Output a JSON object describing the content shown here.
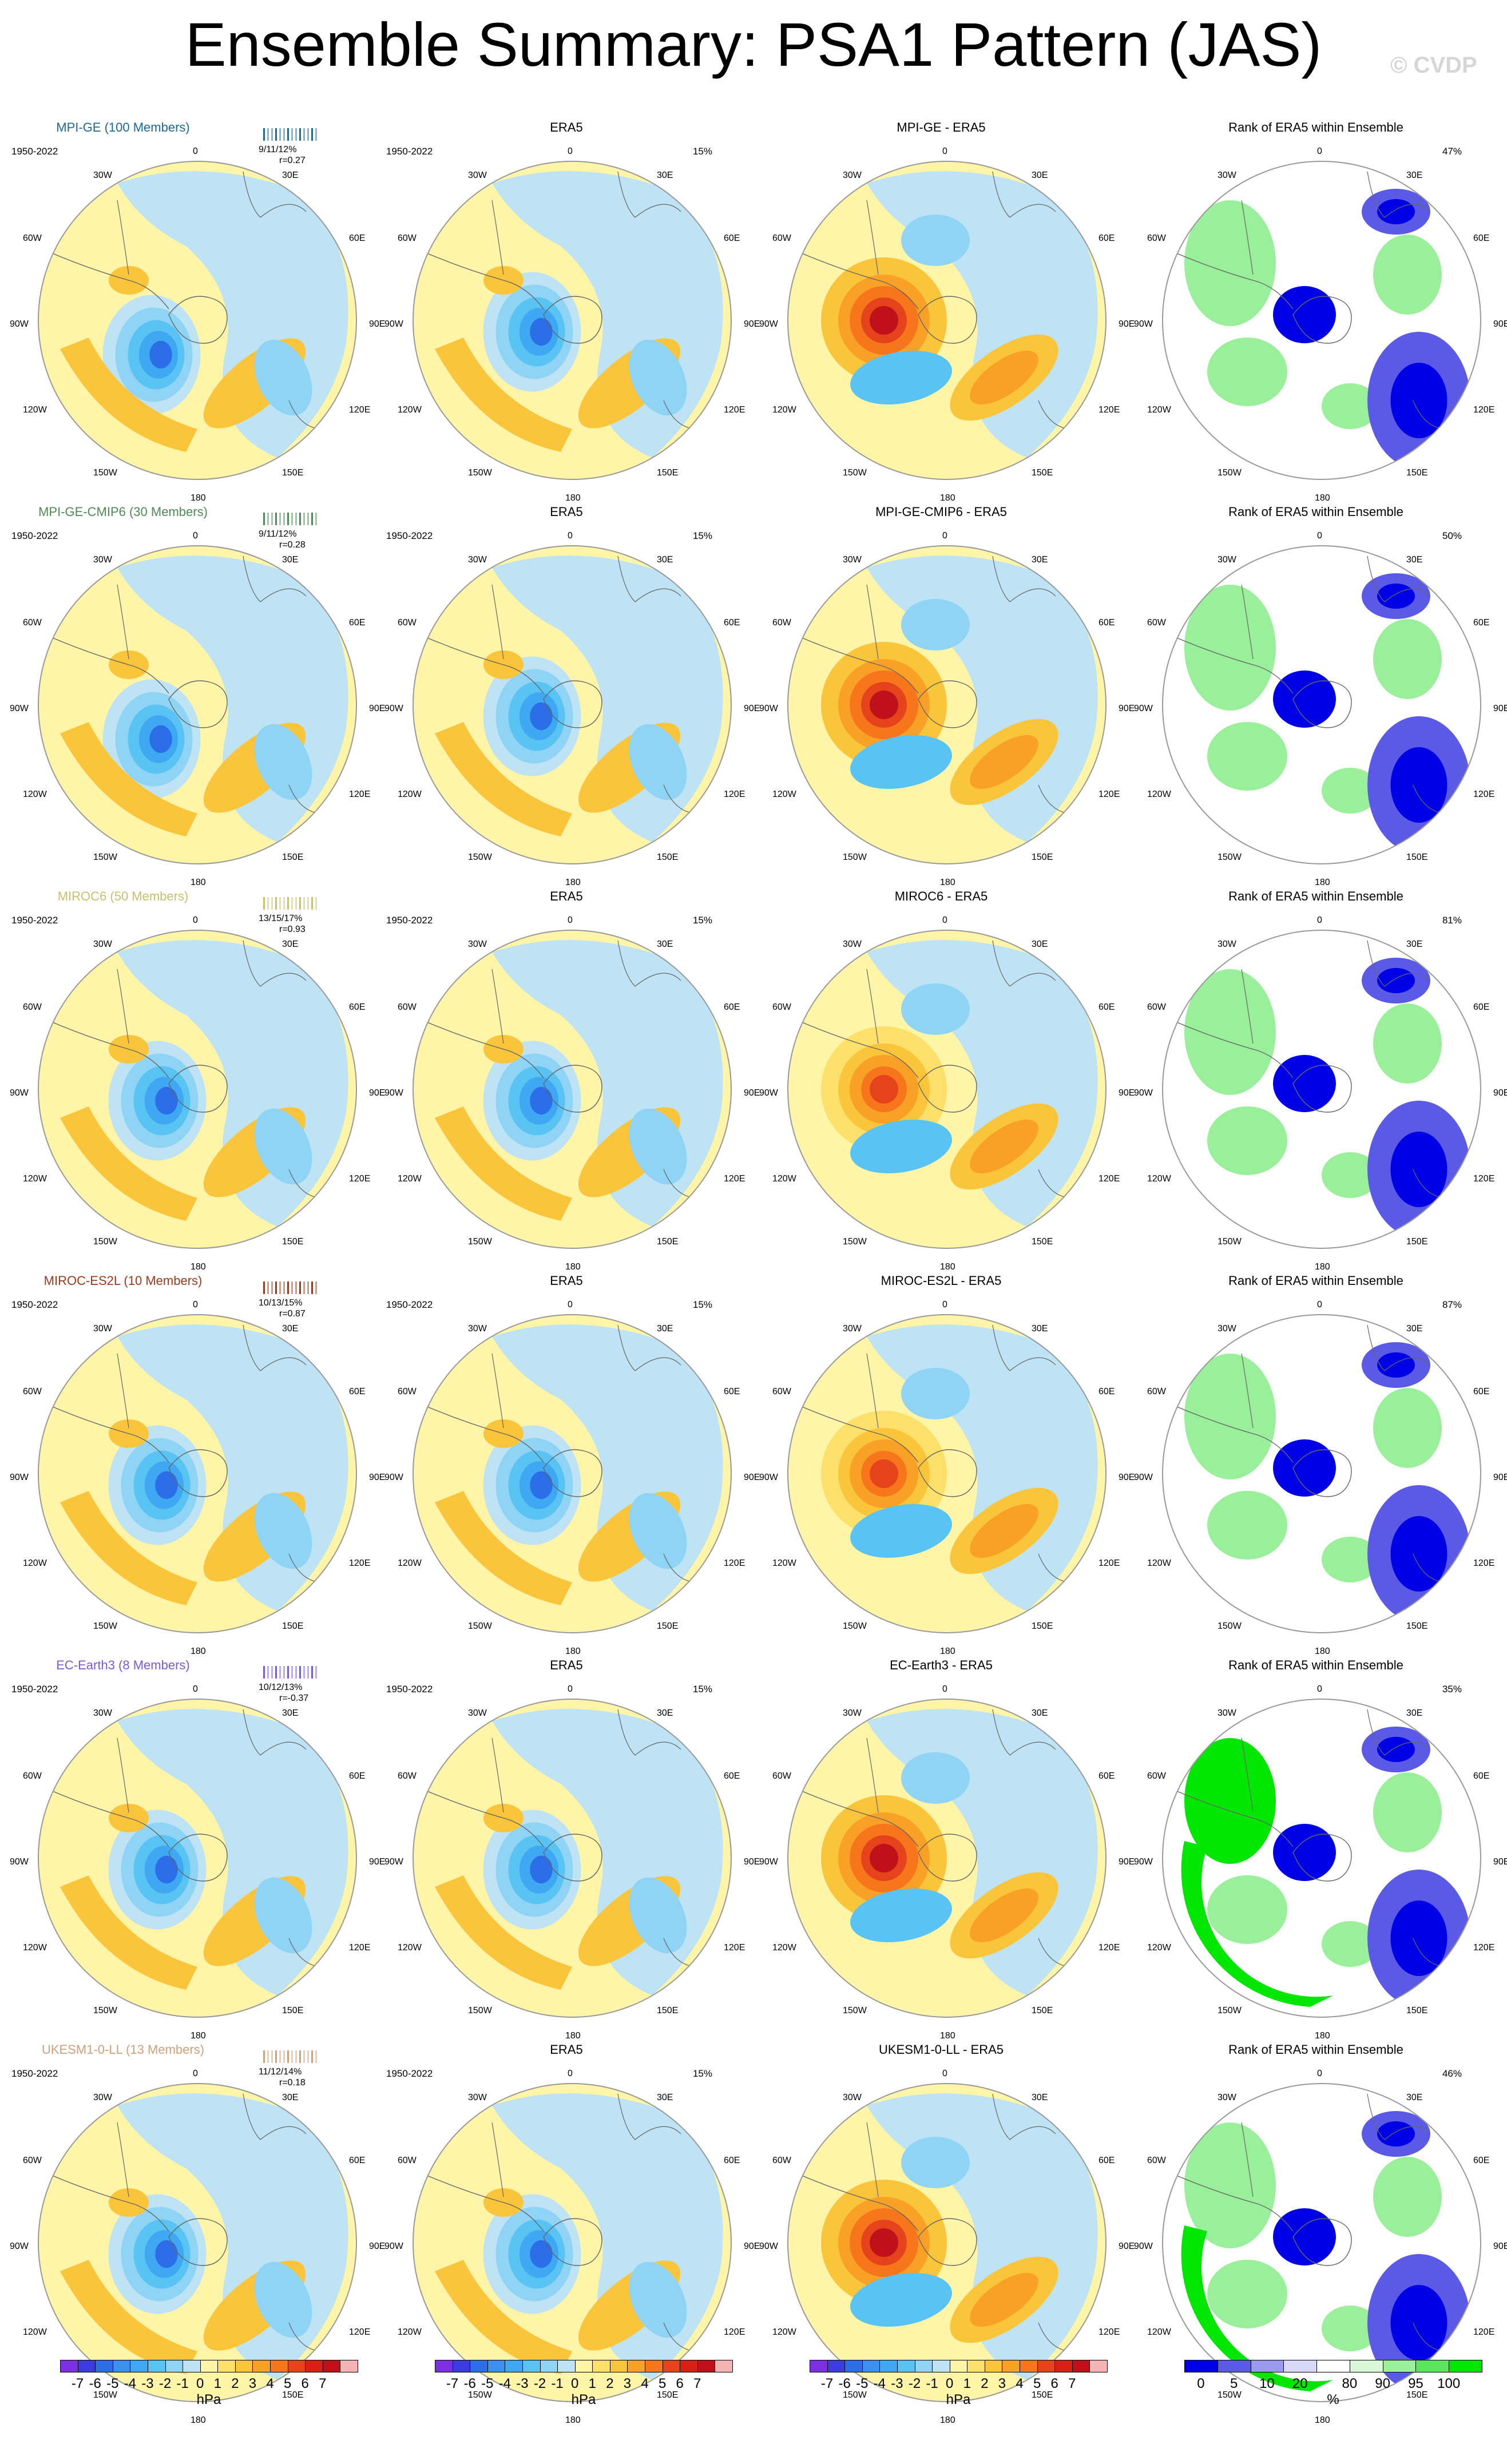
{
  "header": {
    "title": "Ensemble Summary: PSA1 Pattern (JAS)",
    "watermark": "© CVDP"
  },
  "rows": [
    {
      "model": "MPI-GE",
      "members": "MPI-GE (100 Members)",
      "color": "#1a6a98",
      "stats": "9/11/12%",
      "r": "r=0.27",
      "era_pct": "15%",
      "rank_pct": "47%",
      "diff_title": "MPI-GE - ERA5"
    },
    {
      "model": "MPI-GE-CMIP6",
      "members": "MPI-GE-CMIP6 (30 Members)",
      "color": "#4e8a55",
      "stats": "9/11/12%",
      "r": "r=0.28",
      "era_pct": "15%",
      "rank_pct": "50%",
      "diff_title": "MPI-GE-CMIP6 - ERA5"
    },
    {
      "model": "MIROC6",
      "members": "MIROC6 (50 Members)",
      "color": "#c8c06a",
      "stats": "13/15/17%",
      "r": "r=0.93",
      "era_pct": "15%",
      "rank_pct": "81%",
      "diff_title": "MIROC6 - ERA5"
    },
    {
      "model": "MIROC-ES2L",
      "members": "MIROC-ES2L (10 Members)",
      "color": "#9a3a1c",
      "stats": "10/13/15%",
      "r": "r=0.87",
      "era_pct": "15%",
      "rank_pct": "87%",
      "diff_title": "MIROC-ES2L - ERA5"
    },
    {
      "model": "EC-Earth3",
      "members": "EC-Earth3 (8 Members)",
      "color": "#7a5ad8",
      "stats": "10/12/13%",
      "r": "r=-0.37",
      "era_pct": "15%",
      "rank_pct": "35%",
      "diff_title": "EC-Earth3 - ERA5"
    },
    {
      "model": "UKESM1-0-LL",
      "members": "UKESM1-0-LL (13 Members)",
      "color": "#d0a07a",
      "stats": "11/12/14%",
      "r": "r=0.18",
      "era_pct": "15%",
      "rank_pct": "46%",
      "diff_title": "UKESM1-0-LL - ERA5"
    }
  ],
  "labels": {
    "period": "1950-2022",
    "era_title": "ERA5",
    "rank_title": "Rank of ERA5 within Ensemble",
    "lon": {
      "top": "0",
      "r30": "30E",
      "r60": "60E",
      "r90": "90E",
      "r120": "120E",
      "r150": "150E",
      "bottom": "180",
      "l150": "150W",
      "l120": "120W",
      "l90": "90W",
      "l60": "60W",
      "l30": "30W"
    }
  },
  "colorbars": {
    "hpa_ticks": [
      "-7",
      "-6",
      "-5",
      "-4",
      "-3",
      "-2",
      "-1",
      "0",
      "1",
      "2",
      "3",
      "4",
      "5",
      "6",
      "7"
    ],
    "hpa_unit": "hPa",
    "hpa_colors": [
      "#7b2fe0",
      "#3b3be0",
      "#2c6ee8",
      "#3a8fef",
      "#3fa8f2",
      "#59c4f4",
      "#8fd3f5",
      "#bde3f5",
      "#fff5a8",
      "#fde06a",
      "#fbc53b",
      "#f9a126",
      "#f7761c",
      "#e5431b",
      "#d62018",
      "#c0101a",
      "#f4b4b4"
    ],
    "rank_ticks": [
      "0",
      "5",
      "10",
      "20",
      "80",
      "90",
      "95",
      "100"
    ],
    "rank_unit": "%",
    "rank_colors": [
      "#0000e6",
      "#5a5ae6",
      "#9a9af0",
      "#d8d8f8",
      "#ffffff",
      "#d8f8d8",
      "#9af09a",
      "#5ae65a",
      "#00e600"
    ]
  }
}
